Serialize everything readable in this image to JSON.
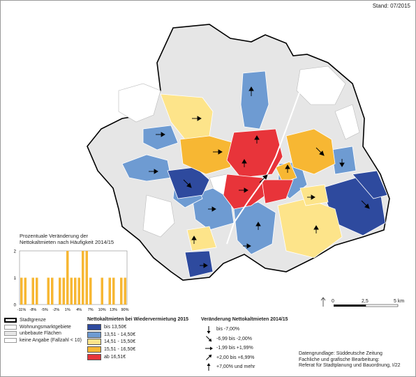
{
  "stand": "Stand: 07/2015",
  "colors": {
    "blue_dark": "#2e4a9e",
    "blue_light": "#6e9bd2",
    "yellow_light": "#fde48a",
    "orange": "#f7b733",
    "red": "#e8343a",
    "grey": "#e6e6e6",
    "white": "#ffffff"
  },
  "histogram": {
    "title_line1": "Prozentuale Veränderung der",
    "title_line2": "Nettokaltmieten nach Häufigkeit 2014/15",
    "y_ticks": [
      "2",
      "1",
      "0"
    ],
    "x_ticks": [
      "-11%",
      "-8%",
      "-5%",
      "-2%",
      "1%",
      "4%",
      "7%",
      "10%",
      "13%",
      "90%"
    ],
    "chart_data": {
      "type": "bar",
      "categories": [
        "-11%",
        "-10%",
        "-9%",
        "-8%",
        "-7%",
        "-6%",
        "-5%",
        "-4%",
        "-3%",
        "-2%",
        "-1%",
        "0%",
        "1%",
        "2%",
        "3%",
        "4%",
        "5%",
        "6%",
        "7%",
        "8%",
        "9%",
        "10%",
        "11%",
        "12%",
        "13%",
        "14%",
        "15%",
        "90%"
      ],
      "values": [
        1,
        1,
        0,
        1,
        1,
        0,
        0,
        1,
        1,
        0,
        1,
        1,
        2,
        1,
        1,
        1,
        2,
        2,
        1,
        0,
        0,
        1,
        0,
        1,
        1,
        0,
        1,
        1
      ],
      "ylim": [
        0,
        2
      ]
    }
  },
  "legend_left": [
    {
      "label": "Stadtgrenze",
      "kind": "boundary"
    },
    {
      "label": "Wohnungsmarktgebiete",
      "kind": "area"
    },
    {
      "label": "unbebaute Flächen",
      "kind": "grey"
    },
    {
      "label": "keine Angabe (Fallzahl < 10)",
      "kind": "white"
    }
  ],
  "legend_rent": {
    "title": "Nettokaltmieten bei Wiedervermietung 2015",
    "items": [
      {
        "label": "bis 13,50€",
        "color": "#2e4a9e"
      },
      {
        "label": "13,51 - 14,50€",
        "color": "#6e9bd2"
      },
      {
        "label": "14,51 - 15,50€",
        "color": "#fde48a"
      },
      {
        "label": "15,51 - 16,50€",
        "color": "#f7b733"
      },
      {
        "label": "ab 16,51€",
        "color": "#e8343a"
      }
    ]
  },
  "legend_change": {
    "title": "Veränderung Nettokaltmieten 2014/15",
    "items": [
      {
        "label": "bis -7,00%",
        "angle": 90
      },
      {
        "label": "-6,99 bis -2,00%",
        "angle": 45
      },
      {
        "label": "-1,99 bis +1,99%",
        "angle": 0
      },
      {
        "label": "+2,00 bis +6,99%",
        "angle": -45
      },
      {
        "label": "+7,00% und mehr",
        "angle": -90
      }
    ]
  },
  "scale": {
    "ticks": [
      "0",
      "2,5",
      "5 km"
    ]
  },
  "source": {
    "line1": "Datengrundlage: Süddeutsche Zeitung",
    "line2": "Fachliche und grafische Bearbeitung:",
    "line3": "Referat für Stadtplanung und Bauordnung, I/22"
  }
}
